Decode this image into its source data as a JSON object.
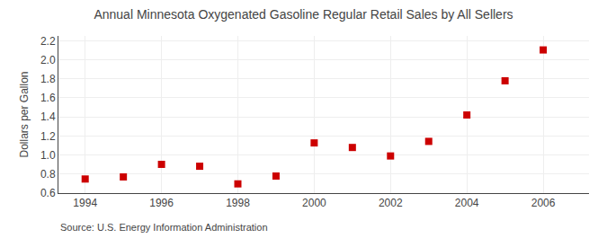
{
  "chart_data": {
    "type": "scatter",
    "title": "Annual Minnesota Oxygenated Gasoline Regular Retail Sales by All Sellers",
    "ylabel": "Dollars per Gallon",
    "annotations": [
      "Source: U.S. Energy Information Administration"
    ],
    "x": [
      1994,
      1995,
      1996,
      1997,
      1998,
      1999,
      2000,
      2001,
      2002,
      2003,
      2004,
      2005,
      2006
    ],
    "values": [
      0.748,
      0.77,
      0.902,
      0.882,
      0.697,
      0.779,
      1.127,
      1.079,
      0.99,
      1.143,
      1.42,
      1.779,
      2.103
    ],
    "color": "#cc0000",
    "marker": "square",
    "xlim": [
      1993.3,
      2007.2
    ],
    "ylim": [
      0.6,
      2.25
    ],
    "xticks": [
      1994,
      1996,
      1998,
      2000,
      2002,
      2004,
      2006
    ],
    "yticks": [
      0.6,
      0.8,
      {
        "value": 1,
        "label": "1.0"
      },
      1.2,
      1.4,
      1.6,
      1.8,
      {
        "value": 2,
        "label": "2.0"
      },
      2.2
    ],
    "grid": true
  }
}
